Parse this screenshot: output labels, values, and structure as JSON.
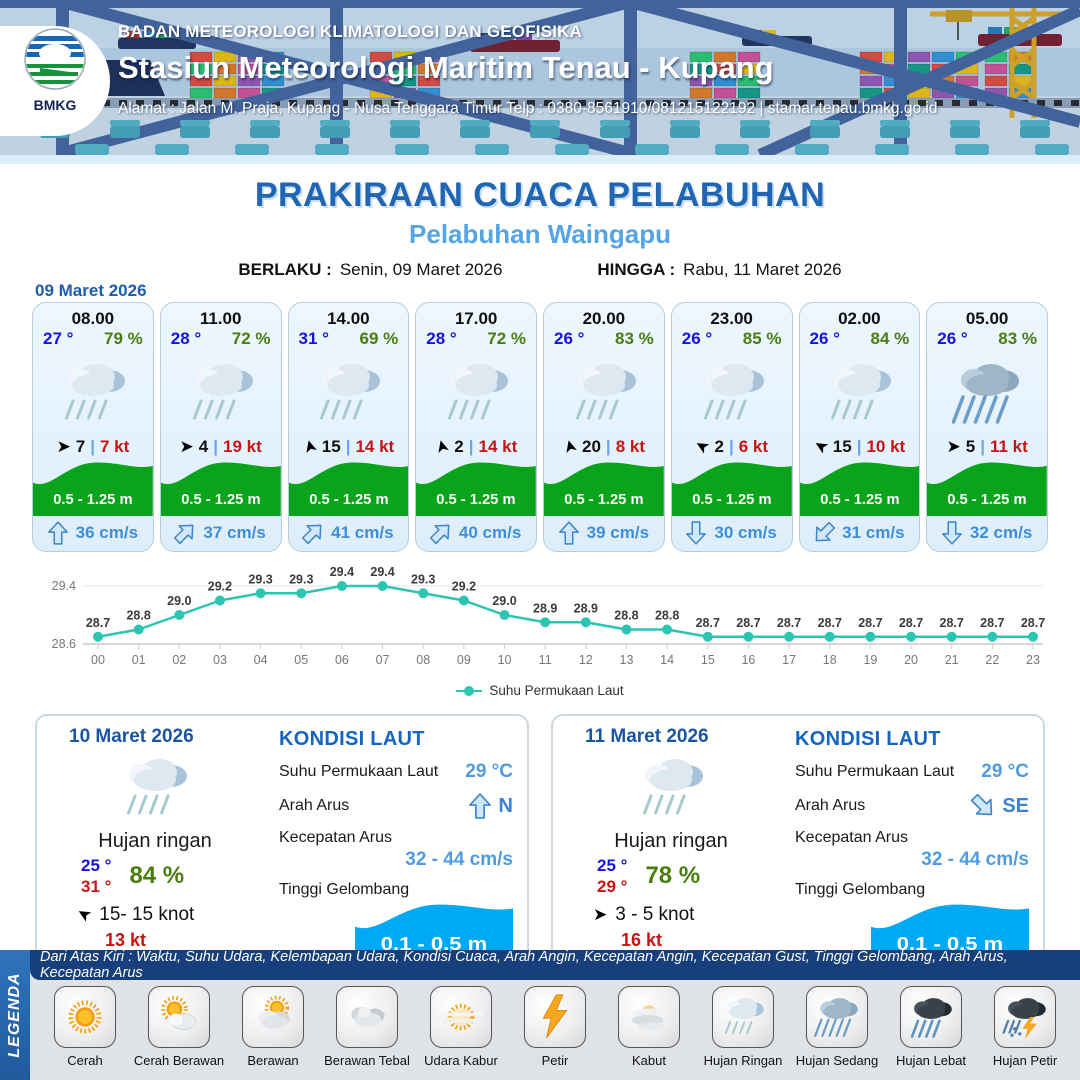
{
  "header": {
    "org": "BADAN METEOROLOGI KLIMATOLOGI DAN GEOFISIKA",
    "station": "Stasiun Meteorologi Maritim Tenau - Kupang",
    "address": "Alamat : Jalan M. Praja, Kupang - Nusa Tenggara Timur Telp : 0380-8561910/081215122192  | stamar.tenau.bmkg.go.id",
    "logo_label": "BMKG"
  },
  "title": {
    "main": "PRAKIRAAN CUACA PELABUHAN",
    "sub": "Pelabuhan Waingapu",
    "berlaku_label": "BERLAKU :",
    "berlaku_value": "Senin, 09 Maret 2026",
    "hingga_label": "HINGGA :",
    "hingga_value": "Rabu, 11 Maret 2026",
    "date_label": "09 Maret 2026"
  },
  "cards": [
    {
      "time": "08.00",
      "temp": "27 °",
      "humidity": "79 %",
      "icon": "hujan-ringan",
      "wind_deg": 0,
      "wind_speed": "7",
      "gust": "7 kt",
      "wave": "0.5 - 1.25 m",
      "current_deg": 0,
      "current": "36 cm/s"
    },
    {
      "time": "11.00",
      "temp": "28 °",
      "humidity": "72 %",
      "icon": "hujan-ringan",
      "wind_deg": 0,
      "wind_speed": "4",
      "gust": "19 kt",
      "wave": "0.5 - 1.25 m",
      "current_deg": 45,
      "current": "37 cm/s"
    },
    {
      "time": "14.00",
      "temp": "31 °",
      "humidity": "69 %",
      "icon": "hujan-ringan",
      "wind_deg": -105,
      "wind_speed": "15",
      "gust": "14 kt",
      "wave": "0.5 - 1.25 m",
      "current_deg": 45,
      "current": "41 cm/s"
    },
    {
      "time": "17.00",
      "temp": "28 °",
      "humidity": "72 %",
      "icon": "hujan-ringan",
      "wind_deg": -105,
      "wind_speed": "2",
      "gust": "14 kt",
      "wave": "0.5 - 1.25 m",
      "current_deg": 45,
      "current": "40 cm/s"
    },
    {
      "time": "20.00",
      "temp": "26 °",
      "humidity": "83 %",
      "icon": "hujan-ringan",
      "wind_deg": -105,
      "wind_speed": "20",
      "gust": "8 kt",
      "wave": "0.5 - 1.25 m",
      "current_deg": 0,
      "current": "39 cm/s"
    },
    {
      "time": "23.00",
      "temp": "26 °",
      "humidity": "85 %",
      "icon": "hujan-ringan",
      "wind_deg": -150,
      "wind_speed": "2",
      "gust": "6 kt",
      "wave": "0.5 - 1.25 m",
      "current_deg": 180,
      "current": "30 cm/s"
    },
    {
      "time": "02.00",
      "temp": "26 °",
      "humidity": "84 %",
      "icon": "hujan-ringan",
      "wind_deg": -150,
      "wind_speed": "15",
      "gust": "10 kt",
      "wave": "0.5 - 1.25 m",
      "current_deg": 225,
      "current": "31 cm/s"
    },
    {
      "time": "05.00",
      "temp": "26 °",
      "humidity": "83 %",
      "icon": "hujan-sedang",
      "wind_deg": 0,
      "wind_speed": "5",
      "gust": "11 kt",
      "wave": "0.5 - 1.25 m",
      "current_deg": 180,
      "current": "32 cm/s"
    }
  ],
  "chart_data": {
    "type": "line",
    "x": [
      "00",
      "01",
      "02",
      "03",
      "04",
      "05",
      "06",
      "07",
      "08",
      "09",
      "10",
      "11",
      "12",
      "13",
      "14",
      "15",
      "16",
      "17",
      "18",
      "19",
      "20",
      "21",
      "22",
      "23"
    ],
    "values": [
      28.7,
      28.8,
      29.0,
      29.2,
      29.3,
      29.3,
      29.4,
      29.4,
      29.3,
      29.2,
      29.0,
      28.9,
      28.9,
      28.8,
      28.8,
      28.7,
      28.7,
      28.7,
      28.7,
      28.7,
      28.7,
      28.7,
      28.7,
      28.7
    ],
    "series_name": "Suhu Permukaan Laut",
    "ylim": [
      28.6,
      29.4
    ],
    "yticks": [
      28.6,
      29.4
    ],
    "grid": true,
    "legend_position": "bottom",
    "color": "#2cc5b2"
  },
  "sea_labels": {
    "title": "KONDISI LAUT",
    "sst": "Suhu Permukaan Laut",
    "arah": "Arah Arus",
    "kecepatan": "Kecepatan Arus",
    "gelombang": "Tinggi Gelombang"
  },
  "days": [
    {
      "date": "10 Maret 2026",
      "condition": "Hujan ringan",
      "icon": "hujan-ringan",
      "temp_min": "25 °",
      "temp_max": "31 °",
      "humidity": "84 %",
      "wind_deg": -150,
      "wind_range": "15- 15 knot",
      "gust": "13 kt",
      "sea": {
        "sst": "29 °C",
        "arah": "N",
        "arah_deg": 0,
        "kecepatan": "32 - 44 cm/s",
        "gelombang": "0.1 - 0.5 m"
      }
    },
    {
      "date": "11 Maret 2026",
      "condition": "Hujan ringan",
      "icon": "hujan-ringan",
      "temp_min": "25 °",
      "temp_max": "29 °",
      "humidity": "78 %",
      "wind_deg": 0,
      "wind_range": "3  - 5 knot",
      "gust": "16 kt",
      "sea": {
        "sst": "29 °C",
        "arah": "SE",
        "arah_deg": 135,
        "kecepatan": "32 - 44 cm/s",
        "gelombang": "0.1 - 0.5 m"
      }
    }
  ],
  "legend": {
    "title": "LEGENDA",
    "note": "Dari Atas Kiri : Waktu, Suhu Udara, Kelembapan Udara, Kondisi Cuaca, Arah Angin, Kecepatan Angin, Kecepatan Gust, Tinggi Gelombang, Arah Arus, Kecepatan Arus",
    "items": [
      {
        "label": "Cerah",
        "icon": "cerah"
      },
      {
        "label": "Cerah Berawan",
        "icon": "cerah-berawan"
      },
      {
        "label": "Berawan",
        "icon": "berawan"
      },
      {
        "label": "Berawan Tebal",
        "icon": "berawan-tebal"
      },
      {
        "label": "Udara Kabur",
        "icon": "udara-kabur"
      },
      {
        "label": "Petir",
        "icon": "petir"
      },
      {
        "label": "Kabut",
        "icon": "kabut"
      },
      {
        "label": "Hujan Ringan",
        "icon": "hujan-ringan"
      },
      {
        "label": "Hujan Sedang",
        "icon": "hujan-sedang"
      },
      {
        "label": "Hujan Lebat",
        "icon": "hujan-lebat"
      },
      {
        "label": "Hujan Petir",
        "icon": "hujan-petir"
      }
    ]
  }
}
